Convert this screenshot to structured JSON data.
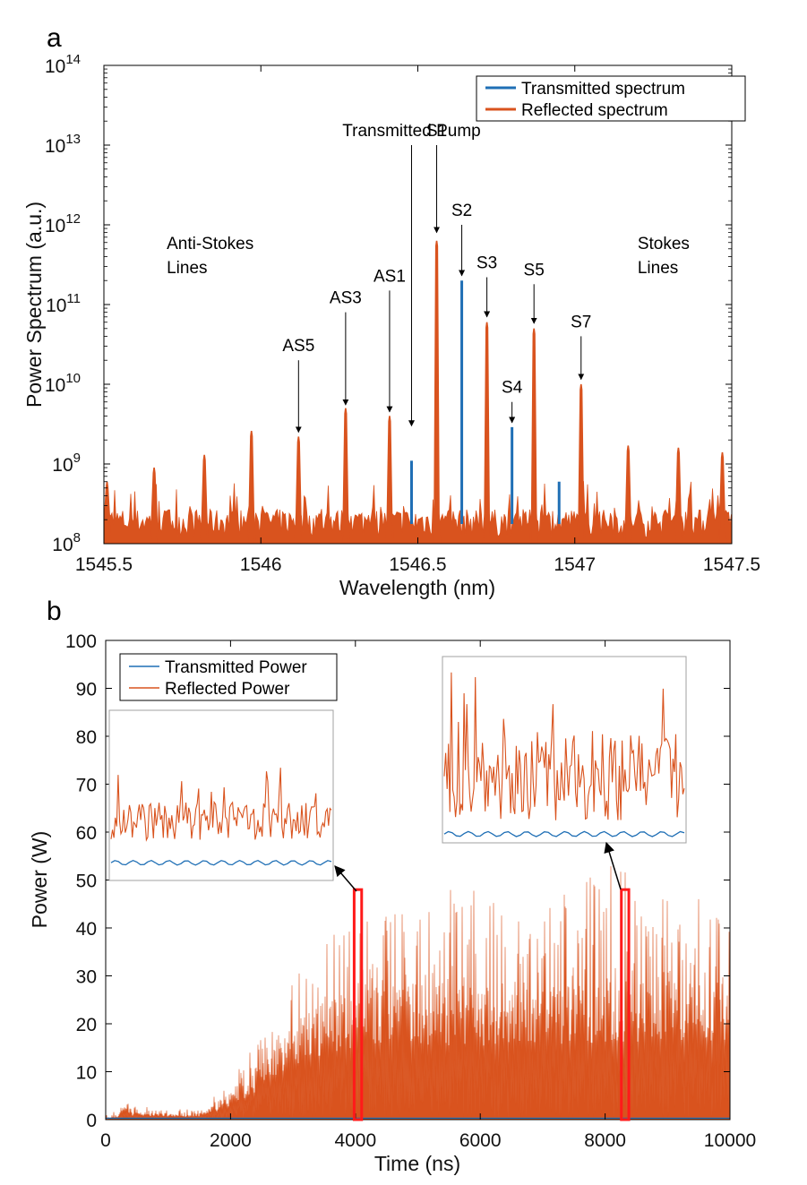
{
  "colors": {
    "transmitted": "#1f6fb5",
    "reflected": "#d9531e",
    "highlight": "#ff1a1a",
    "inset_frame": "#a0a0a0"
  },
  "chart_data": [
    {
      "panel": "a",
      "type": "line",
      "xlabel": "Wavelength (nm)",
      "ylabel": "Power Spectrum (a.u.)",
      "xlim": [
        1545.5,
        1547.5
      ],
      "ylim": [
        100000000.0,
        100000000000000.0
      ],
      "yscale": "log",
      "x_ticks": [
        "1545.5",
        "1546",
        "1546.5",
        "1547",
        "1547.5"
      ],
      "x_tick_values": [
        1545.5,
        1546,
        1546.5,
        1547,
        1547.5
      ],
      "y_ticks": [
        {
          "base": "10",
          "exp": "8"
        },
        {
          "base": "10",
          "exp": "9"
        },
        {
          "base": "10",
          "exp": "10"
        },
        {
          "base": "10",
          "exp": "11"
        },
        {
          "base": "10",
          "exp": "12"
        },
        {
          "base": "10",
          "exp": "13"
        },
        {
          "base": "10",
          "exp": "14"
        }
      ],
      "noise_floor": 150000000.0,
      "legend": {
        "position": "top-right",
        "entries": [
          "Transmitted spectrum",
          "Reflected spectrum"
        ]
      },
      "series": [
        {
          "name": "Transmitted spectrum",
          "peaks": [
            {
              "x": 1546.48,
              "y": 1100000000.0
            },
            {
              "x": 1546.64,
              "y": 200000000000.0
            },
            {
              "x": 1546.8,
              "y": 2900000000.0
            },
            {
              "x": 1546.95,
              "y": 600000000.0
            }
          ]
        },
        {
          "name": "Reflected spectrum",
          "peaks": [
            {
              "x": 1545.51,
              "y": 600000000.0
            },
            {
              "x": 1545.66,
              "y": 900000000.0
            },
            {
              "x": 1545.82,
              "y": 1300000000.0
            },
            {
              "x": 1545.97,
              "y": 2600000000.0
            },
            {
              "x": 1546.12,
              "y": 2200000000.0
            },
            {
              "x": 1546.27,
              "y": 5000000000.0
            },
            {
              "x": 1546.41,
              "y": 4000000000.0
            },
            {
              "x": 1546.56,
              "y": 630000000000.0
            },
            {
              "x": 1546.72,
              "y": 60000000000.0
            },
            {
              "x": 1546.87,
              "y": 50000000000.0
            },
            {
              "x": 1547.02,
              "y": 10000000000.0
            },
            {
              "x": 1547.17,
              "y": 1700000000.0
            },
            {
              "x": 1547.33,
              "y": 1600000000.0
            },
            {
              "x": 1547.47,
              "y": 1400000000.0
            }
          ]
        }
      ],
      "annotations": [
        {
          "text": "Transmitted Pump",
          "x": 1546.48,
          "arrow_from": 10000000000000.0,
          "arrow_to": 3000000000.0
        },
        {
          "text": "S1",
          "x": 1546.56,
          "arrow_from": 10000000000000.0,
          "arrow_to": 800000000000.0
        },
        {
          "text": "S2",
          "x": 1546.64,
          "arrow_from": 1000000000000.0,
          "arrow_to": 230000000000.0
        },
        {
          "text": "S3",
          "x": 1546.72,
          "arrow_from": 220000000000.0,
          "arrow_to": 70000000000.0
        },
        {
          "text": "S4",
          "x": 1546.8,
          "arrow_from": 6000000000.0,
          "arrow_to": 3300000000.0
        },
        {
          "text": "S5",
          "x": 1546.87,
          "arrow_from": 180000000000.0,
          "arrow_to": 58000000000.0
        },
        {
          "text": "S7",
          "x": 1547.02,
          "arrow_from": 40000000000.0,
          "arrow_to": 11500000000.0
        },
        {
          "text": "AS1",
          "x": 1546.41,
          "arrow_from": 150000000000.0,
          "arrow_to": 4500000000.0
        },
        {
          "text": "AS3",
          "x": 1546.27,
          "arrow_from": 80000000000.0,
          "arrow_to": 5500000000.0
        },
        {
          "text": "AS5",
          "x": 1546.12,
          "arrow_from": 20000000000.0,
          "arrow_to": 2500000000.0
        }
      ],
      "region_labels": [
        {
          "lines": [
            "Anti-Stokes",
            "Lines"
          ],
          "x": 1545.7,
          "y": 500000000000.0
        },
        {
          "lines": [
            "Stokes",
            "Lines"
          ],
          "x": 1547.2,
          "y": 500000000000.0
        }
      ]
    },
    {
      "panel": "b",
      "type": "line",
      "xlabel": "Time (ns)",
      "ylabel": "Power (W)",
      "xlim": [
        0,
        10000
      ],
      "ylim": [
        0,
        100
      ],
      "x_ticks": [
        "0",
        "2000",
        "4000",
        "6000",
        "8000",
        "10000"
      ],
      "x_tick_values": [
        0,
        2000,
        4000,
        6000,
        8000,
        10000
      ],
      "y_ticks": [
        "0",
        "10",
        "20",
        "30",
        "40",
        "50",
        "60",
        "70",
        "80",
        "90",
        "100"
      ],
      "y_tick_values": [
        0,
        10,
        20,
        30,
        40,
        50,
        60,
        70,
        80,
        90,
        100
      ],
      "legend": {
        "position": "top-left",
        "entries": [
          "Transmitted Power",
          "Reflected Power"
        ]
      },
      "series": [
        {
          "name": "Reflected Power",
          "envelope": {
            "x": [
              0,
              200,
              300,
              400,
              1500,
              2000,
              2500,
              3000,
              3500,
              4000,
              5000,
              6000,
              7000,
              8000,
              9000,
              10000
            ],
            "peak": [
              1,
              2,
              5,
              3,
              2,
              8,
              18,
              30,
              40,
              45,
              48,
              48,
              47,
              55,
              48,
              45
            ],
            "body": [
              0,
              1,
              3,
              1.5,
              1,
              5,
              12,
              20,
              25,
              27,
              28,
              28,
              28,
              29,
              30,
              30
            ]
          }
        },
        {
          "name": "Transmitted Power",
          "envelope": {
            "x": [
              0,
              10000
            ],
            "level": [
              0.5,
              0.5
            ]
          }
        }
      ],
      "highlight_windows": [
        {
          "x_start": 3980,
          "x_end": 4100,
          "y_top": 48
        },
        {
          "x_start": 8260,
          "x_end": 8380,
          "y_top": 48
        }
      ],
      "insets": [
        {
          "label": "zoom-4000ns",
          "reflected_mean": 0.35,
          "reflected_spread": 0.25,
          "transmitted_level": 0.08
        },
        {
          "label": "zoom-8300ns",
          "reflected_mean": 0.35,
          "reflected_spread": 0.5,
          "transmitted_level": 0.02
        }
      ]
    }
  ]
}
